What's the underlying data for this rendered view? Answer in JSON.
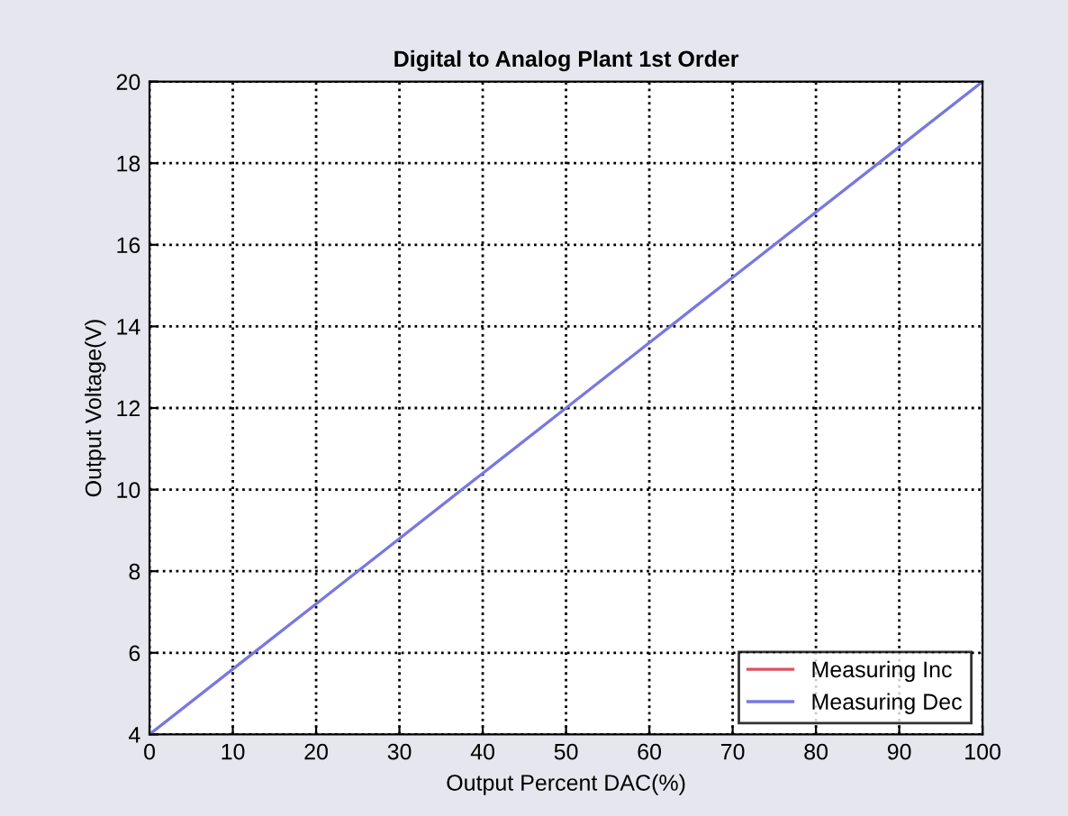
{
  "chart_data": {
    "type": "line",
    "title": "Digital to Analog Plant 1st Order",
    "xlabel": "Output Percent DAC(%)",
    "ylabel": "Output Voltage(V)",
    "x": [
      0,
      10,
      20,
      30,
      40,
      50,
      60,
      70,
      80,
      90,
      100
    ],
    "series": [
      {
        "name": "Measuring Inc",
        "color": "#e05060",
        "values": [
          null,
          null,
          null,
          null,
          null,
          null,
          null,
          null,
          null,
          null,
          null
        ]
      },
      {
        "name": "Measuring Dec",
        "color": "#7878e0",
        "values": [
          4,
          5.6,
          7.2,
          8.8,
          10.4,
          12,
          13.6,
          15.2,
          16.8,
          18.4,
          20
        ]
      }
    ],
    "xlim": [
      0,
      100
    ],
    "ylim": [
      4,
      20
    ],
    "xticks": [
      0,
      10,
      20,
      30,
      40,
      50,
      60,
      70,
      80,
      90,
      100
    ],
    "yticks": [
      4,
      6,
      8,
      10,
      12,
      14,
      16,
      18,
      20
    ],
    "grid": true,
    "legend": "bottom right",
    "line_style": "solid"
  }
}
